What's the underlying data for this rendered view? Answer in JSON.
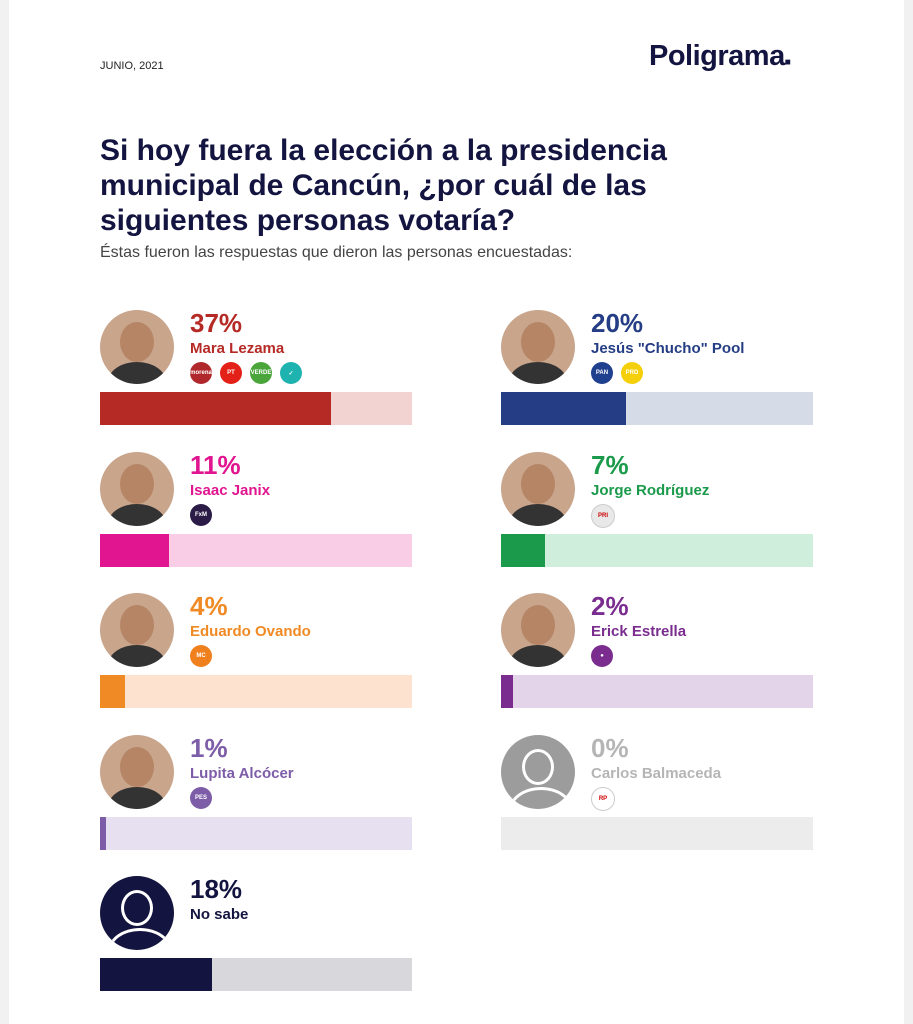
{
  "header": {
    "date": "JUNIO, 2021",
    "brand": "Poligrama",
    "brand_dot": "■"
  },
  "title": "Si hoy fuera la elección a la presidencia municipal de Cancún, ¿por cuál de las siguientes personas votaría?",
  "subtitle": "Éstas fueron las respuestas que dieron las personas encuestadas:",
  "chart_data": {
    "type": "bar",
    "xlim": [
      0,
      50
    ],
    "categories": [
      "Mara Lezama",
      "Jesús \"Chucho\" Pool",
      "Isaac Janix",
      "Jorge Rodríguez",
      "Eduardo Ovando",
      "Erick Estrella",
      "Lupita Alcócer",
      "Carlos Balmaceda",
      "No sabe"
    ],
    "values": [
      37,
      20,
      11,
      7,
      4,
      2,
      1,
      0,
      18
    ],
    "labels": [
      "37%",
      "20%",
      "11%",
      "7%",
      "4%",
      "2%",
      "1%",
      "0%",
      "18%"
    ],
    "colors": [
      "#b52a25",
      "#243d84",
      "#e0158f",
      "#1a9a4a",
      "#f08a24",
      "#7a2d8e",
      "#7d5ca8",
      "#b5b5b5",
      "#13143f"
    ],
    "track_colors": [
      "#f2d3d2",
      "#d6dbe8",
      "#f9cde6",
      "#cfeedc",
      "#fde3cf",
      "#e4d4ea",
      "#e6e0f0",
      "#ececec",
      "#d8d8dc"
    ],
    "parties": [
      [
        {
          "icon": "morena-logo",
          "text": "morena",
          "color": "#b0272c"
        },
        {
          "icon": "pt-logo",
          "text": "PT",
          "color": "#e32119"
        },
        {
          "icon": "verde-logo",
          "text": "VERDE",
          "color": "#4aa63b"
        },
        {
          "icon": "fuerza-logo",
          "text": "✓",
          "color": "#1fb3b0"
        }
      ],
      [
        {
          "icon": "pan-logo",
          "text": "PAN",
          "color": "#1f3f8f"
        },
        {
          "icon": "prd-logo",
          "text": "PRD",
          "color": "#f5cf0a"
        }
      ],
      [
        {
          "icon": "fuerza-por-mexico-logo",
          "text": "FxM",
          "color": "#2a1b47"
        }
      ],
      [
        {
          "icon": "pri-logo",
          "text": "PRI",
          "color": "#e8e8e8"
        }
      ],
      [
        {
          "icon": "movimiento-ciudadano-logo",
          "text": "MC",
          "color": "#f07f1e"
        }
      ],
      [
        {
          "icon": "independiente-logo",
          "text": "●",
          "color": "#7a2d8e"
        }
      ],
      [
        {
          "icon": "pes-logo",
          "text": "PES",
          "color": "#7d5ca8"
        }
      ],
      [
        {
          "icon": "rsp-logo",
          "text": "RP",
          "color": "#ffffff"
        }
      ],
      []
    ]
  }
}
